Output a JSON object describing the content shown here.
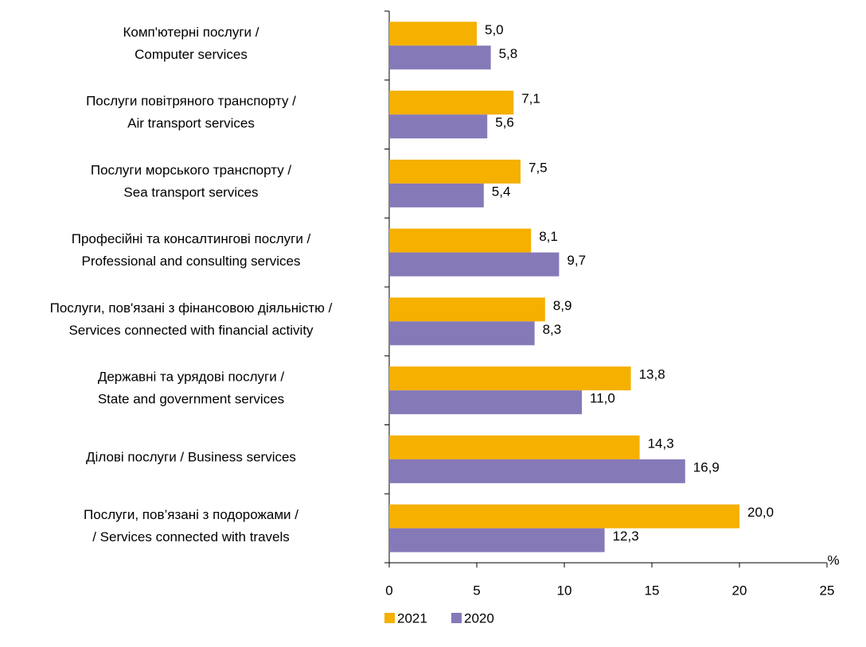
{
  "chart_data": {
    "type": "bar",
    "orientation": "horizontal",
    "categories": [
      [
        "Комп'ютерні послуги /",
        "Computer services"
      ],
      [
        "Послуги повітряного транспорту /",
        "Air transport services"
      ],
      [
        "Послуги морського транспорту /",
        "Sea transport services"
      ],
      [
        "Професійні та консалтингові послуги /",
        "Professional and consulting services"
      ],
      [
        "Послуги, пов'язані з фінансовою діяльністю /",
        "Services connected with financial activity"
      ],
      [
        "Державні та урядові послуги /",
        "State and government services"
      ],
      [
        "Ділові послуги / Business services"
      ],
      [
        "Послуги, пов’язані з подорожами /",
        "/ Services connected with travels"
      ]
    ],
    "series": [
      {
        "name": "2021",
        "color": "#f5b000",
        "values": [
          5.0,
          7.1,
          7.5,
          8.1,
          8.9,
          13.8,
          14.3,
          20.0
        ],
        "value_labels": [
          "5,0",
          "7,1",
          "7,5",
          "8,1",
          "8,9",
          "13,8",
          "14,3",
          "20,0"
        ]
      },
      {
        "name": "2020",
        "color": "#8679b8",
        "values": [
          5.8,
          5.6,
          5.4,
          9.7,
          8.3,
          11.0,
          16.9,
          12.3
        ],
        "value_labels": [
          "5,8",
          "5,6",
          "5,4",
          "9,7",
          "8,3",
          "11,0",
          "16,9",
          "12,3"
        ]
      }
    ],
    "xlabel": "%",
    "xlim": [
      0,
      25
    ],
    "xticks": [
      0,
      5,
      10,
      15,
      20,
      25
    ],
    "legend": "bottom"
  }
}
